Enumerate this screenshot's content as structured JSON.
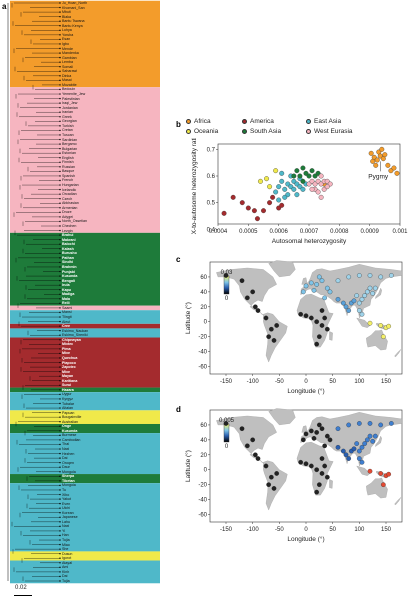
{
  "panels": {
    "a": "a",
    "b": "b",
    "c": "c",
    "d": "d"
  },
  "colors": {
    "africa": "#f39c2b",
    "west_eurasia": "#f6b5c0",
    "south_asia": "#1e7b3a",
    "america": "#a42b2e",
    "east_asia": "#4fb8c9",
    "oceania": "#f0e94a",
    "land": "#bfbfbf"
  },
  "scale_bar": {
    "label": "0.02"
  },
  "tree_leaves": [
    {
      "text": "Ju_Hoan_North",
      "group": "africa"
    },
    {
      "text": "Khomani_San",
      "group": "africa"
    },
    {
      "text": "Mbuti",
      "group": "africa"
    },
    {
      "text": "Biaka",
      "group": "africa"
    },
    {
      "text": "Bantu Tswana",
      "group": "africa"
    },
    {
      "text": "Bantu Kenya",
      "group": "africa"
    },
    {
      "text": "Luhya",
      "group": "africa"
    },
    {
      "text": "Yoruba",
      "group": "africa"
    },
    {
      "text": "Esan",
      "group": "africa"
    },
    {
      "text": "Igbo",
      "group": "africa"
    },
    {
      "text": "Mende",
      "group": "africa"
    },
    {
      "text": "Mandenka",
      "group": "africa"
    },
    {
      "text": "Gambian",
      "group": "africa"
    },
    {
      "text": "Lemba",
      "group": "africa"
    },
    {
      "text": "Somali",
      "group": "africa"
    },
    {
      "text": "Saharawi",
      "group": "africa"
    },
    {
      "text": "Dinka",
      "group": "africa"
    },
    {
      "text": "Masai",
      "group": "africa"
    },
    {
      "text": "Mozabite",
      "group": "africa"
    },
    {
      "text": "Bedouin",
      "group": "west_eurasia"
    },
    {
      "text": "Yemenite_Jew",
      "group": "west_eurasia"
    },
    {
      "text": "Palestinian",
      "group": "west_eurasia"
    },
    {
      "text": "Iraqi_Jew",
      "group": "west_eurasia"
    },
    {
      "text": "Jordanian",
      "group": "west_eurasia"
    },
    {
      "text": "Iranian",
      "group": "west_eurasia"
    },
    {
      "text": "Greek",
      "group": "west_eurasia"
    },
    {
      "text": "Georgian",
      "group": "west_eurasia"
    },
    {
      "text": "Turkish",
      "group": "west_eurasia"
    },
    {
      "text": "Cretan",
      "group": "west_eurasia"
    },
    {
      "text": "Tuscan",
      "group": "west_eurasia"
    },
    {
      "text": "Sardinian",
      "group": "west_eurasia"
    },
    {
      "text": "Bergamo",
      "group": "west_eurasia"
    },
    {
      "text": "Bulgarian",
      "group": "west_eurasia"
    },
    {
      "text": "Estonian",
      "group": "west_eurasia"
    },
    {
      "text": "English",
      "group": "west_eurasia"
    },
    {
      "text": "Finnish",
      "group": "west_eurasia"
    },
    {
      "text": "Russian",
      "group": "west_eurasia"
    },
    {
      "text": "Basque",
      "group": "west_eurasia"
    },
    {
      "text": "Spanish",
      "group": "west_eurasia"
    },
    {
      "text": "French",
      "group": "west_eurasia"
    },
    {
      "text": "Hungarian",
      "group": "west_eurasia"
    },
    {
      "text": "Icelandic",
      "group": "west_eurasia"
    },
    {
      "text": "Orcadian",
      "group": "west_eurasia"
    },
    {
      "text": "Czech",
      "group": "west_eurasia"
    },
    {
      "text": "Abkhasian",
      "group": "west_eurasia"
    },
    {
      "text": "Armenian",
      "group": "west_eurasia"
    },
    {
      "text": "Druze",
      "group": "west_eurasia"
    },
    {
      "text": "Adygei",
      "group": "west_eurasia"
    },
    {
      "text": "North_Ossetian",
      "group": "west_eurasia"
    },
    {
      "text": "Chechen",
      "group": "west_eurasia"
    },
    {
      "text": "Lezgin",
      "group": "west_eurasia"
    },
    {
      "text": "Brahui",
      "group": "south_asia"
    },
    {
      "text": "Makrani",
      "group": "south_asia"
    },
    {
      "text": "Balochi",
      "group": "south_asia"
    },
    {
      "text": "Kalash",
      "group": "south_asia"
    },
    {
      "text": "Burusho",
      "group": "south_asia"
    },
    {
      "text": "Pathan",
      "group": "south_asia"
    },
    {
      "text": "Sindhi",
      "group": "south_asia"
    },
    {
      "text": "Brahmin",
      "group": "south_asia"
    },
    {
      "text": "Punjabi",
      "group": "south_asia"
    },
    {
      "text": "Kusunda",
      "group": "south_asia"
    },
    {
      "text": "Bengali",
      "group": "south_asia"
    },
    {
      "text": "Irula",
      "group": "south_asia"
    },
    {
      "text": "Kapu",
      "group": "south_asia"
    },
    {
      "text": "Madiga",
      "group": "south_asia"
    },
    {
      "text": "Mala",
      "group": "south_asia"
    },
    {
      "text": "Relli",
      "group": "south_asia"
    },
    {
      "text": "Saami",
      "group": "west_eurasia"
    },
    {
      "text": "Mansi",
      "group": "east_asia"
    },
    {
      "text": "Tlingit",
      "group": "east_asia"
    },
    {
      "text": "Aleut",
      "group": "east_asia"
    },
    {
      "text": "Cree",
      "group": "america"
    },
    {
      "text": "Eskimo_Naukan",
      "group": "east_asia"
    },
    {
      "text": "Eskimo_Sireniki",
      "group": "east_asia"
    },
    {
      "text": "Chipewyan",
      "group": "america"
    },
    {
      "text": "Mixtec",
      "group": "america"
    },
    {
      "text": "Pima",
      "group": "america"
    },
    {
      "text": "Mixe",
      "group": "america"
    },
    {
      "text": "Quechua",
      "group": "america"
    },
    {
      "text": "Piapoco",
      "group": "america"
    },
    {
      "text": "Zapotec",
      "group": "america"
    },
    {
      "text": "Mixe",
      "group": "america"
    },
    {
      "text": "Mayan",
      "group": "america"
    },
    {
      "text": "Karitiana",
      "group": "america"
    },
    {
      "text": "Surui",
      "group": "america"
    },
    {
      "text": "Hazara",
      "group": "south_asia"
    },
    {
      "text": "Uygur",
      "group": "east_asia"
    },
    {
      "text": "Kyrgyz",
      "group": "east_asia"
    },
    {
      "text": "Tubalar",
      "group": "east_asia"
    },
    {
      "text": "Altaian",
      "group": "east_asia"
    },
    {
      "text": "Papuan",
      "group": "oceania"
    },
    {
      "text": "Bougainville",
      "group": "oceania"
    },
    {
      "text": "Australian",
      "group": "oceania"
    },
    {
      "text": "Onge",
      "group": "south_asia"
    },
    {
      "text": "Kusunda",
      "group": "south_asia"
    },
    {
      "text": "Burmese",
      "group": "east_asia"
    },
    {
      "text": "Cambodian",
      "group": "east_asia"
    },
    {
      "text": "Thai",
      "group": "east_asia"
    },
    {
      "text": "Naxi",
      "group": "east_asia"
    },
    {
      "text": "Hezhen",
      "group": "east_asia"
    },
    {
      "text": "Dai",
      "group": "east_asia"
    },
    {
      "text": "Oroqen",
      "group": "east_asia"
    },
    {
      "text": "Daur",
      "group": "east_asia"
    },
    {
      "text": "Mongola",
      "group": "east_asia"
    },
    {
      "text": "Sherpa",
      "group": "south_asia"
    },
    {
      "text": "Tibetan",
      "group": "south_asia"
    },
    {
      "text": "Mongola",
      "group": "east_asia"
    },
    {
      "text": "Tu",
      "group": "east_asia"
    },
    {
      "text": "Xibo",
      "group": "east_asia"
    },
    {
      "text": "Yakut",
      "group": "east_asia"
    },
    {
      "text": "Even",
      "group": "east_asia"
    },
    {
      "text": "Ulchi",
      "group": "east_asia"
    },
    {
      "text": "Korean",
      "group": "east_asia"
    },
    {
      "text": "Japanese",
      "group": "east_asia"
    },
    {
      "text": "Lahu",
      "group": "east_asia"
    },
    {
      "text": "Naxi",
      "group": "east_asia"
    },
    {
      "text": "Yi",
      "group": "east_asia"
    },
    {
      "text": "Han",
      "group": "east_asia"
    },
    {
      "text": "Tujia",
      "group": "east_asia"
    },
    {
      "text": "Miao",
      "group": "east_asia"
    },
    {
      "text": "She",
      "group": "east_asia"
    },
    {
      "text": "Dusun",
      "group": "oceania"
    },
    {
      "text": "Igorot",
      "group": "oceania"
    },
    {
      "text": "Atayal",
      "group": "east_asia"
    },
    {
      "text": "Ami",
      "group": "east_asia"
    },
    {
      "text": "Kinh",
      "group": "east_asia"
    },
    {
      "text": "Dai",
      "group": "east_asia"
    },
    {
      "text": "Tujia",
      "group": "east_asia"
    }
  ],
  "legend_b": [
    {
      "label": "Africa",
      "group": "africa"
    },
    {
      "label": "America",
      "group": "america"
    },
    {
      "label": "East Asia",
      "group": "east_asia"
    },
    {
      "label": "Oceania",
      "group": "oceania"
    },
    {
      "label": "South Asia",
      "group": "south_asia"
    },
    {
      "label": "West Eurasia",
      "group": "west_eurasia"
    }
  ],
  "chart_data": [
    {
      "panel": "b",
      "type": "scatter",
      "xlabel": "Autosomal heterozygosity",
      "ylabel": "X-to-autosome heterozygosity ratio",
      "xlim": [
        0.0004,
        0.001
      ],
      "ylim": [
        0.42,
        0.72
      ],
      "xticks": [
        "0.0004",
        "0.0005",
        "0.0006",
        "0.0007",
        "0.0008",
        "0.0009",
        "0.001"
      ],
      "yticks": [
        "0.4",
        "0.5",
        "0.6",
        "0.7"
      ],
      "annotation": "Pygmy",
      "points": [
        {
          "x": 0.000905,
          "y": 0.685,
          "g": "africa"
        },
        {
          "x": 0.000915,
          "y": 0.67,
          "g": "africa"
        },
        {
          "x": 0.000925,
          "y": 0.66,
          "g": "africa"
        },
        {
          "x": 0.00093,
          "y": 0.69,
          "g": "africa"
        },
        {
          "x": 0.000935,
          "y": 0.675,
          "g": "africa"
        },
        {
          "x": 0.00094,
          "y": 0.7,
          "g": "africa"
        },
        {
          "x": 0.000945,
          "y": 0.665,
          "g": "africa"
        },
        {
          "x": 0.00092,
          "y": 0.64,
          "g": "africa"
        },
        {
          "x": 0.00095,
          "y": 0.68,
          "g": "africa"
        },
        {
          "x": 0.00091,
          "y": 0.655,
          "g": "africa"
        },
        {
          "x": 0.00097,
          "y": 0.62,
          "g": "africa"
        },
        {
          "x": 0.00098,
          "y": 0.63,
          "g": "africa"
        },
        {
          "x": 0.00096,
          "y": 0.64,
          "g": "africa"
        },
        {
          "x": 0.00099,
          "y": 0.61,
          "g": "africa"
        },
        {
          "x": 0.00075,
          "y": 0.57,
          "g": "africa"
        },
        {
          "x": 0.00042,
          "y": 0.46,
          "g": "america"
        },
        {
          "x": 0.00045,
          "y": 0.52,
          "g": "america"
        },
        {
          "x": 0.00048,
          "y": 0.5,
          "g": "america"
        },
        {
          "x": 0.0005,
          "y": 0.48,
          "g": "america"
        },
        {
          "x": 0.00052,
          "y": 0.47,
          "g": "america"
        },
        {
          "x": 0.00055,
          "y": 0.47,
          "g": "america"
        },
        {
          "x": 0.00057,
          "y": 0.5,
          "g": "america"
        },
        {
          "x": 0.00058,
          "y": 0.52,
          "g": "america"
        },
        {
          "x": 0.0006,
          "y": 0.48,
          "g": "america"
        },
        {
          "x": 0.00061,
          "y": 0.49,
          "g": "america"
        },
        {
          "x": 0.00053,
          "y": 0.44,
          "g": "america"
        },
        {
          "x": 0.00059,
          "y": 0.54,
          "g": "east_asia"
        },
        {
          "x": 0.0006,
          "y": 0.56,
          "g": "east_asia"
        },
        {
          "x": 0.00061,
          "y": 0.58,
          "g": "east_asia"
        },
        {
          "x": 0.00062,
          "y": 0.55,
          "g": "east_asia"
        },
        {
          "x": 0.00063,
          "y": 0.57,
          "g": "east_asia"
        },
        {
          "x": 0.00063,
          "y": 0.53,
          "g": "east_asia"
        },
        {
          "x": 0.00064,
          "y": 0.56,
          "g": "east_asia"
        },
        {
          "x": 0.00064,
          "y": 0.6,
          "g": "east_asia"
        },
        {
          "x": 0.00065,
          "y": 0.55,
          "g": "east_asia"
        },
        {
          "x": 0.00065,
          "y": 0.58,
          "g": "east_asia"
        },
        {
          "x": 0.00066,
          "y": 0.57,
          "g": "east_asia"
        },
        {
          "x": 0.00066,
          "y": 0.53,
          "g": "east_asia"
        },
        {
          "x": 0.00067,
          "y": 0.56,
          "g": "east_asia"
        },
        {
          "x": 0.00067,
          "y": 0.59,
          "g": "east_asia"
        },
        {
          "x": 0.00068,
          "y": 0.55,
          "g": "east_asia"
        },
        {
          "x": 0.00062,
          "y": 0.52,
          "g": "east_asia"
        },
        {
          "x": 0.00061,
          "y": 0.61,
          "g": "east_asia"
        },
        {
          "x": 0.0006,
          "y": 0.51,
          "g": "east_asia"
        },
        {
          "x": 0.00069,
          "y": 0.57,
          "g": "east_asia"
        },
        {
          "x": 0.00054,
          "y": 0.58,
          "g": "oceania"
        },
        {
          "x": 0.00057,
          "y": 0.56,
          "g": "oceania"
        },
        {
          "x": 0.00059,
          "y": 0.62,
          "g": "oceania"
        },
        {
          "x": 0.00056,
          "y": 0.59,
          "g": "oceania"
        },
        {
          "x": 0.00065,
          "y": 0.6,
          "g": "south_asia"
        },
        {
          "x": 0.00066,
          "y": 0.62,
          "g": "south_asia"
        },
        {
          "x": 0.00067,
          "y": 0.6,
          "g": "south_asia"
        },
        {
          "x": 0.00068,
          "y": 0.63,
          "g": "south_asia"
        },
        {
          "x": 0.00069,
          "y": 0.61,
          "g": "south_asia"
        },
        {
          "x": 0.0007,
          "y": 0.6,
          "g": "south_asia"
        },
        {
          "x": 0.00071,
          "y": 0.62,
          "g": "south_asia"
        },
        {
          "x": 0.00072,
          "y": 0.6,
          "g": "south_asia"
        },
        {
          "x": 0.00073,
          "y": 0.61,
          "g": "south_asia"
        },
        {
          "x": 0.00068,
          "y": 0.58,
          "g": "south_asia"
        },
        {
          "x": 0.0007,
          "y": 0.57,
          "g": "west_eurasia"
        },
        {
          "x": 0.00071,
          "y": 0.58,
          "g": "west_eurasia"
        },
        {
          "x": 0.00072,
          "y": 0.57,
          "g": "west_eurasia"
        },
        {
          "x": 0.00073,
          "y": 0.58,
          "g": "west_eurasia"
        },
        {
          "x": 0.00074,
          "y": 0.57,
          "g": "west_eurasia"
        },
        {
          "x": 0.00075,
          "y": 0.58,
          "g": "west_eurasia"
        },
        {
          "x": 0.00074,
          "y": 0.6,
          "g": "west_eurasia"
        },
        {
          "x": 0.00076,
          "y": 0.58,
          "g": "west_eurasia"
        },
        {
          "x": 0.00077,
          "y": 0.57,
          "g": "west_eurasia"
        },
        {
          "x": 0.00072,
          "y": 0.55,
          "g": "west_eurasia"
        },
        {
          "x": 0.00073,
          "y": 0.54,
          "g": "west_eurasia"
        },
        {
          "x": 0.00075,
          "y": 0.55,
          "g": "west_eurasia"
        },
        {
          "x": 0.00076,
          "y": 0.56,
          "g": "west_eurasia"
        },
        {
          "x": 0.00074,
          "y": 0.52,
          "g": "west_eurasia"
        },
        {
          "x": 0.00071,
          "y": 0.55,
          "g": "west_eurasia"
        }
      ]
    },
    {
      "panel": "c",
      "type": "map",
      "xlabel": "Longitude (°)",
      "ylabel": "Latitude (°)",
      "xlim": [
        -180,
        180
      ],
      "ylim": [
        -70,
        80
      ],
      "xticks": [
        "-150",
        "-100",
        "-50",
        "0",
        "50",
        "100",
        "150"
      ],
      "yticks": [
        "-60",
        "-40",
        "-20",
        "0",
        "20",
        "40",
        "60"
      ],
      "colorbar": {
        "max": "0.03",
        "min": "0"
      }
    },
    {
      "panel": "d",
      "type": "map",
      "xlabel": "Longitude (°)",
      "ylabel": "Latitude (°)",
      "xlim": [
        -180,
        180
      ],
      "ylim": [
        -70,
        80
      ],
      "xticks": [
        "-150",
        "-100",
        "-50",
        "0",
        "50",
        "100",
        "150"
      ],
      "yticks": [
        "-60",
        "-40",
        "-20",
        "0",
        "20",
        "40",
        "60"
      ],
      "colorbar": {
        "max": "0.005",
        "min": "0"
      }
    }
  ]
}
